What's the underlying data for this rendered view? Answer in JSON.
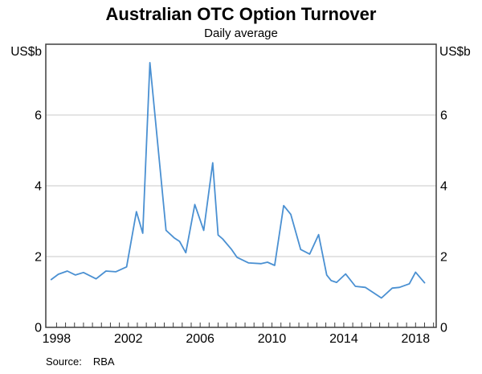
{
  "title": "Australian OTC Option Turnover",
  "subtitle": "Daily average",
  "y_axis_unit_left": "US$b",
  "y_axis_unit_right": "US$b",
  "source_label": "Source:",
  "source_value": "RBA",
  "colors": {
    "line": "#4a90d2",
    "grid": "#c9c9c9",
    "axis": "#3f3f3f",
    "text": "#000000"
  },
  "chart_data": {
    "type": "line",
    "title": "Australian OTC Option Turnover",
    "subtitle": "Daily average",
    "xlabel": "",
    "ylabel": "US$b",
    "ylim": [
      0,
      8
    ],
    "xlim": [
      1997.4,
      2019.15
    ],
    "grid": true,
    "legend": false,
    "y_gridlines": [
      2,
      4,
      6
    ],
    "y_tick_labels": [
      "0",
      "2",
      "4",
      "6"
    ],
    "y_tick_values": [
      0,
      2,
      4,
      6
    ],
    "x_tick_labels": [
      "1998",
      "2002",
      "2006",
      "2010",
      "2014",
      "2018"
    ],
    "x_tick_values": [
      1998,
      2002,
      2006,
      2010,
      2014,
      2018
    ],
    "x_minor_tick_start": 1998.0,
    "x_minor_tick_end": 2019.0,
    "x_minor_tick_interval": 0.5,
    "series": [
      {
        "name": "Australian OTC option turnover (daily average, US$b)",
        "points": [
          [
            1997.7,
            1.35
          ],
          [
            1998.1,
            1.5
          ],
          [
            1998.6,
            1.59
          ],
          [
            1999.05,
            1.48
          ],
          [
            1999.5,
            1.55
          ],
          [
            2000.2,
            1.37
          ],
          [
            2000.75,
            1.59
          ],
          [
            2001.3,
            1.57
          ],
          [
            2001.9,
            1.71
          ],
          [
            2002.45,
            3.27
          ],
          [
            2002.8,
            2.66
          ],
          [
            2003.2,
            7.48
          ],
          [
            2004.1,
            2.74
          ],
          [
            2004.55,
            2.53
          ],
          [
            2004.85,
            2.43
          ],
          [
            2005.2,
            2.11
          ],
          [
            2005.7,
            3.47
          ],
          [
            2006.2,
            2.74
          ],
          [
            2006.7,
            4.65
          ],
          [
            2007.0,
            2.61
          ],
          [
            2007.25,
            2.5
          ],
          [
            2007.75,
            2.2
          ],
          [
            2008.05,
            1.98
          ],
          [
            2008.7,
            1.82
          ],
          [
            2009.4,
            1.8
          ],
          [
            2009.75,
            1.84
          ],
          [
            2010.15,
            1.75
          ],
          [
            2010.65,
            3.44
          ],
          [
            2011.05,
            3.19
          ],
          [
            2011.6,
            2.2
          ],
          [
            2012.1,
            2.07
          ],
          [
            2012.6,
            2.62
          ],
          [
            2013.05,
            1.48
          ],
          [
            2013.3,
            1.32
          ],
          [
            2013.6,
            1.27
          ],
          [
            2014.1,
            1.51
          ],
          [
            2014.65,
            1.16
          ],
          [
            2015.2,
            1.13
          ],
          [
            2015.65,
            0.98
          ],
          [
            2016.1,
            0.83
          ],
          [
            2016.7,
            1.11
          ],
          [
            2017.1,
            1.13
          ],
          [
            2017.65,
            1.23
          ],
          [
            2018.0,
            1.56
          ],
          [
            2018.5,
            1.26
          ]
        ]
      }
    ]
  }
}
